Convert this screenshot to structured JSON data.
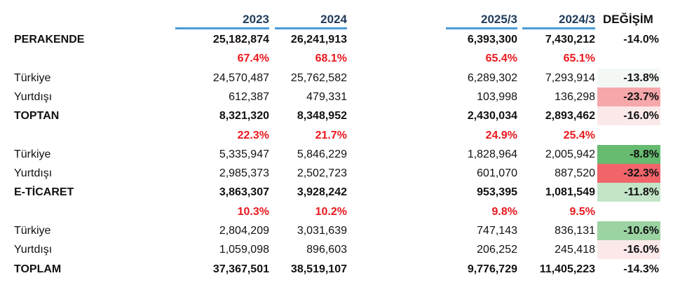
{
  "headers": {
    "y2023": "2023",
    "y2024": "2024",
    "q2025": "2025/3",
    "q2024": "2024/3",
    "change": "DEĞİŞİM"
  },
  "rows": [
    {
      "label": "PERAKENDE",
      "v2023": "25,182,874",
      "v2024": "26,241,913",
      "q2025": "6,393,300",
      "q2024": "7,430,212",
      "change": "-14.0%",
      "change_color": "#ffffff",
      "type": "bold"
    },
    {
      "label": "",
      "v2023": "67.4%",
      "v2024": "68.1%",
      "q2025": "65.4%",
      "q2024": "65.1%",
      "change": "",
      "change_color": "#ffffff",
      "type": "pct"
    },
    {
      "label": "Türkiye",
      "v2023": "24,570,487",
      "v2024": "25,762,582",
      "q2025": "6,289,302",
      "q2024": "7,293,914",
      "change": "-13.8%",
      "change_color": "#f3f8f4",
      "type": "normal"
    },
    {
      "label": "Yurtdışı",
      "v2023": "612,387",
      "v2024": "479,331",
      "q2025": "103,998",
      "q2024": "136,298",
      "change": "-23.7%",
      "change_color": "#f5a7aa",
      "type": "normal"
    },
    {
      "label": "TOPTAN",
      "v2023": "8,321,320",
      "v2024": "8,348,952",
      "q2025": "2,430,034",
      "q2024": "2,893,462",
      "change": "-16.0%",
      "change_color": "#fbe9ea",
      "type": "bold"
    },
    {
      "label": "",
      "v2023": "22.3%",
      "v2024": "21.7%",
      "q2025": "24.9%",
      "q2024": "25.4%",
      "change": "",
      "change_color": "#ffffff",
      "type": "pct"
    },
    {
      "label": "Türkiye",
      "v2023": "5,335,947",
      "v2024": "5,846,229",
      "q2025": "1,828,964",
      "q2024": "2,005,942",
      "change": "-8.8%",
      "change_color": "#66bb70",
      "type": "normal"
    },
    {
      "label": "Yurtdışı",
      "v2023": "2,985,373",
      "v2024": "2,502,723",
      "q2025": "601,070",
      "q2024": "887,520",
      "change": "-32.3%",
      "change_color": "#f0646a",
      "type": "normal"
    },
    {
      "label": "E-TİCARET",
      "v2023": "3,863,307",
      "v2024": "3,928,242",
      "q2025": "953,395",
      "q2024": "1,081,549",
      "change": "-11.8%",
      "change_color": "#c3e4c7",
      "type": "bold"
    },
    {
      "label": "",
      "v2023": "10.3%",
      "v2024": "10.2%",
      "q2025": "9.8%",
      "q2024": "9.5%",
      "change": "",
      "change_color": "#ffffff",
      "type": "pct"
    },
    {
      "label": "Türkiye",
      "v2023": "2,804,209",
      "v2024": "3,031,639",
      "q2025": "747,143",
      "q2024": "836,131",
      "change": "-10.6%",
      "change_color": "#9bd3a2",
      "type": "normal"
    },
    {
      "label": "Yurtdışı",
      "v2023": "1,059,098",
      "v2024": "896,603",
      "q2025": "206,252",
      "q2024": "245,418",
      "change": "-16.0%",
      "change_color": "#fbe9ea",
      "type": "normal"
    },
    {
      "label": "TOPLAM",
      "v2023": "37,367,501",
      "v2024": "38,519,107",
      "q2025": "9,776,729",
      "q2024": "11,405,223",
      "change": "-14.3%",
      "change_color": "#ffffff",
      "type": "bold"
    }
  ]
}
